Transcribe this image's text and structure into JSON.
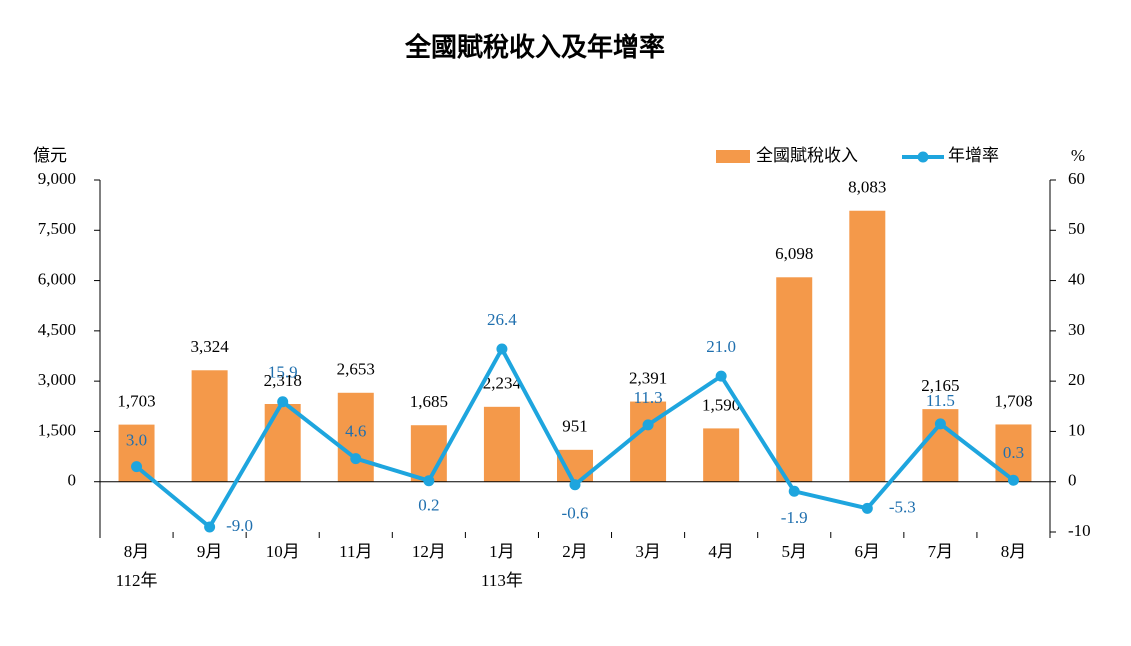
{
  "chart_data": {
    "type": "bar-line",
    "title": "全國賦稅收入及年增率",
    "y_label": "億元",
    "y2_label": "%",
    "categories": [
      "8月",
      "9月",
      "10月",
      "11月",
      "12月",
      "1月",
      "2月",
      "3月",
      "4月",
      "5月",
      "6月",
      "7月",
      "8月"
    ],
    "category_sublabels": [
      "112年",
      null,
      null,
      null,
      null,
      "113年",
      null,
      null,
      null,
      null,
      null,
      null,
      null
    ],
    "series": [
      {
        "name": "全國賦稅收入",
        "type": "bar",
        "color": "#f4994a",
        "values": [
          1703,
          3324,
          2318,
          2653,
          1685,
          2234,
          951,
          2391,
          1590,
          6098,
          8083,
          2165,
          1708
        ],
        "value_labels": [
          "1,703",
          "3,324",
          "2,318",
          "2,653",
          "1,685",
          "2,234",
          "951",
          "2,391",
          "1,590",
          "6,098",
          "8,083",
          "2,165",
          "1,708"
        ]
      },
      {
        "name": "年增率",
        "type": "line",
        "axis": "y2",
        "color": "#1ea5de",
        "label_color": "#1f6fae",
        "values": [
          3.0,
          -9.0,
          15.9,
          4.6,
          0.2,
          26.4,
          -0.6,
          11.3,
          21.0,
          -1.9,
          -5.3,
          11.5,
          0.3
        ],
        "value_labels": [
          "3.0",
          "-9.0",
          "15.9",
          "4.6",
          "0.2",
          "26.4",
          "-0.6",
          "11.3",
          "21.0",
          "-1.9",
          "-5.3",
          "11.5",
          "0.3"
        ]
      }
    ],
    "ylim": [
      -1500,
      9000
    ],
    "yticks": [
      0,
      {
        "value": 1500,
        "label": "1,500"
      },
      {
        "value": 3000,
        "label": "3,000"
      },
      {
        "value": 4500,
        "label": "4,500"
      },
      {
        "value": 6000,
        "label": "6,000"
      },
      {
        "value": 7500,
        "label": "7,500"
      },
      {
        "value": 9000,
        "label": "9,000"
      }
    ],
    "y2lim": [
      -10,
      60
    ],
    "y2ticks": [
      -10,
      0,
      10,
      20,
      30,
      40,
      50,
      60
    ]
  }
}
